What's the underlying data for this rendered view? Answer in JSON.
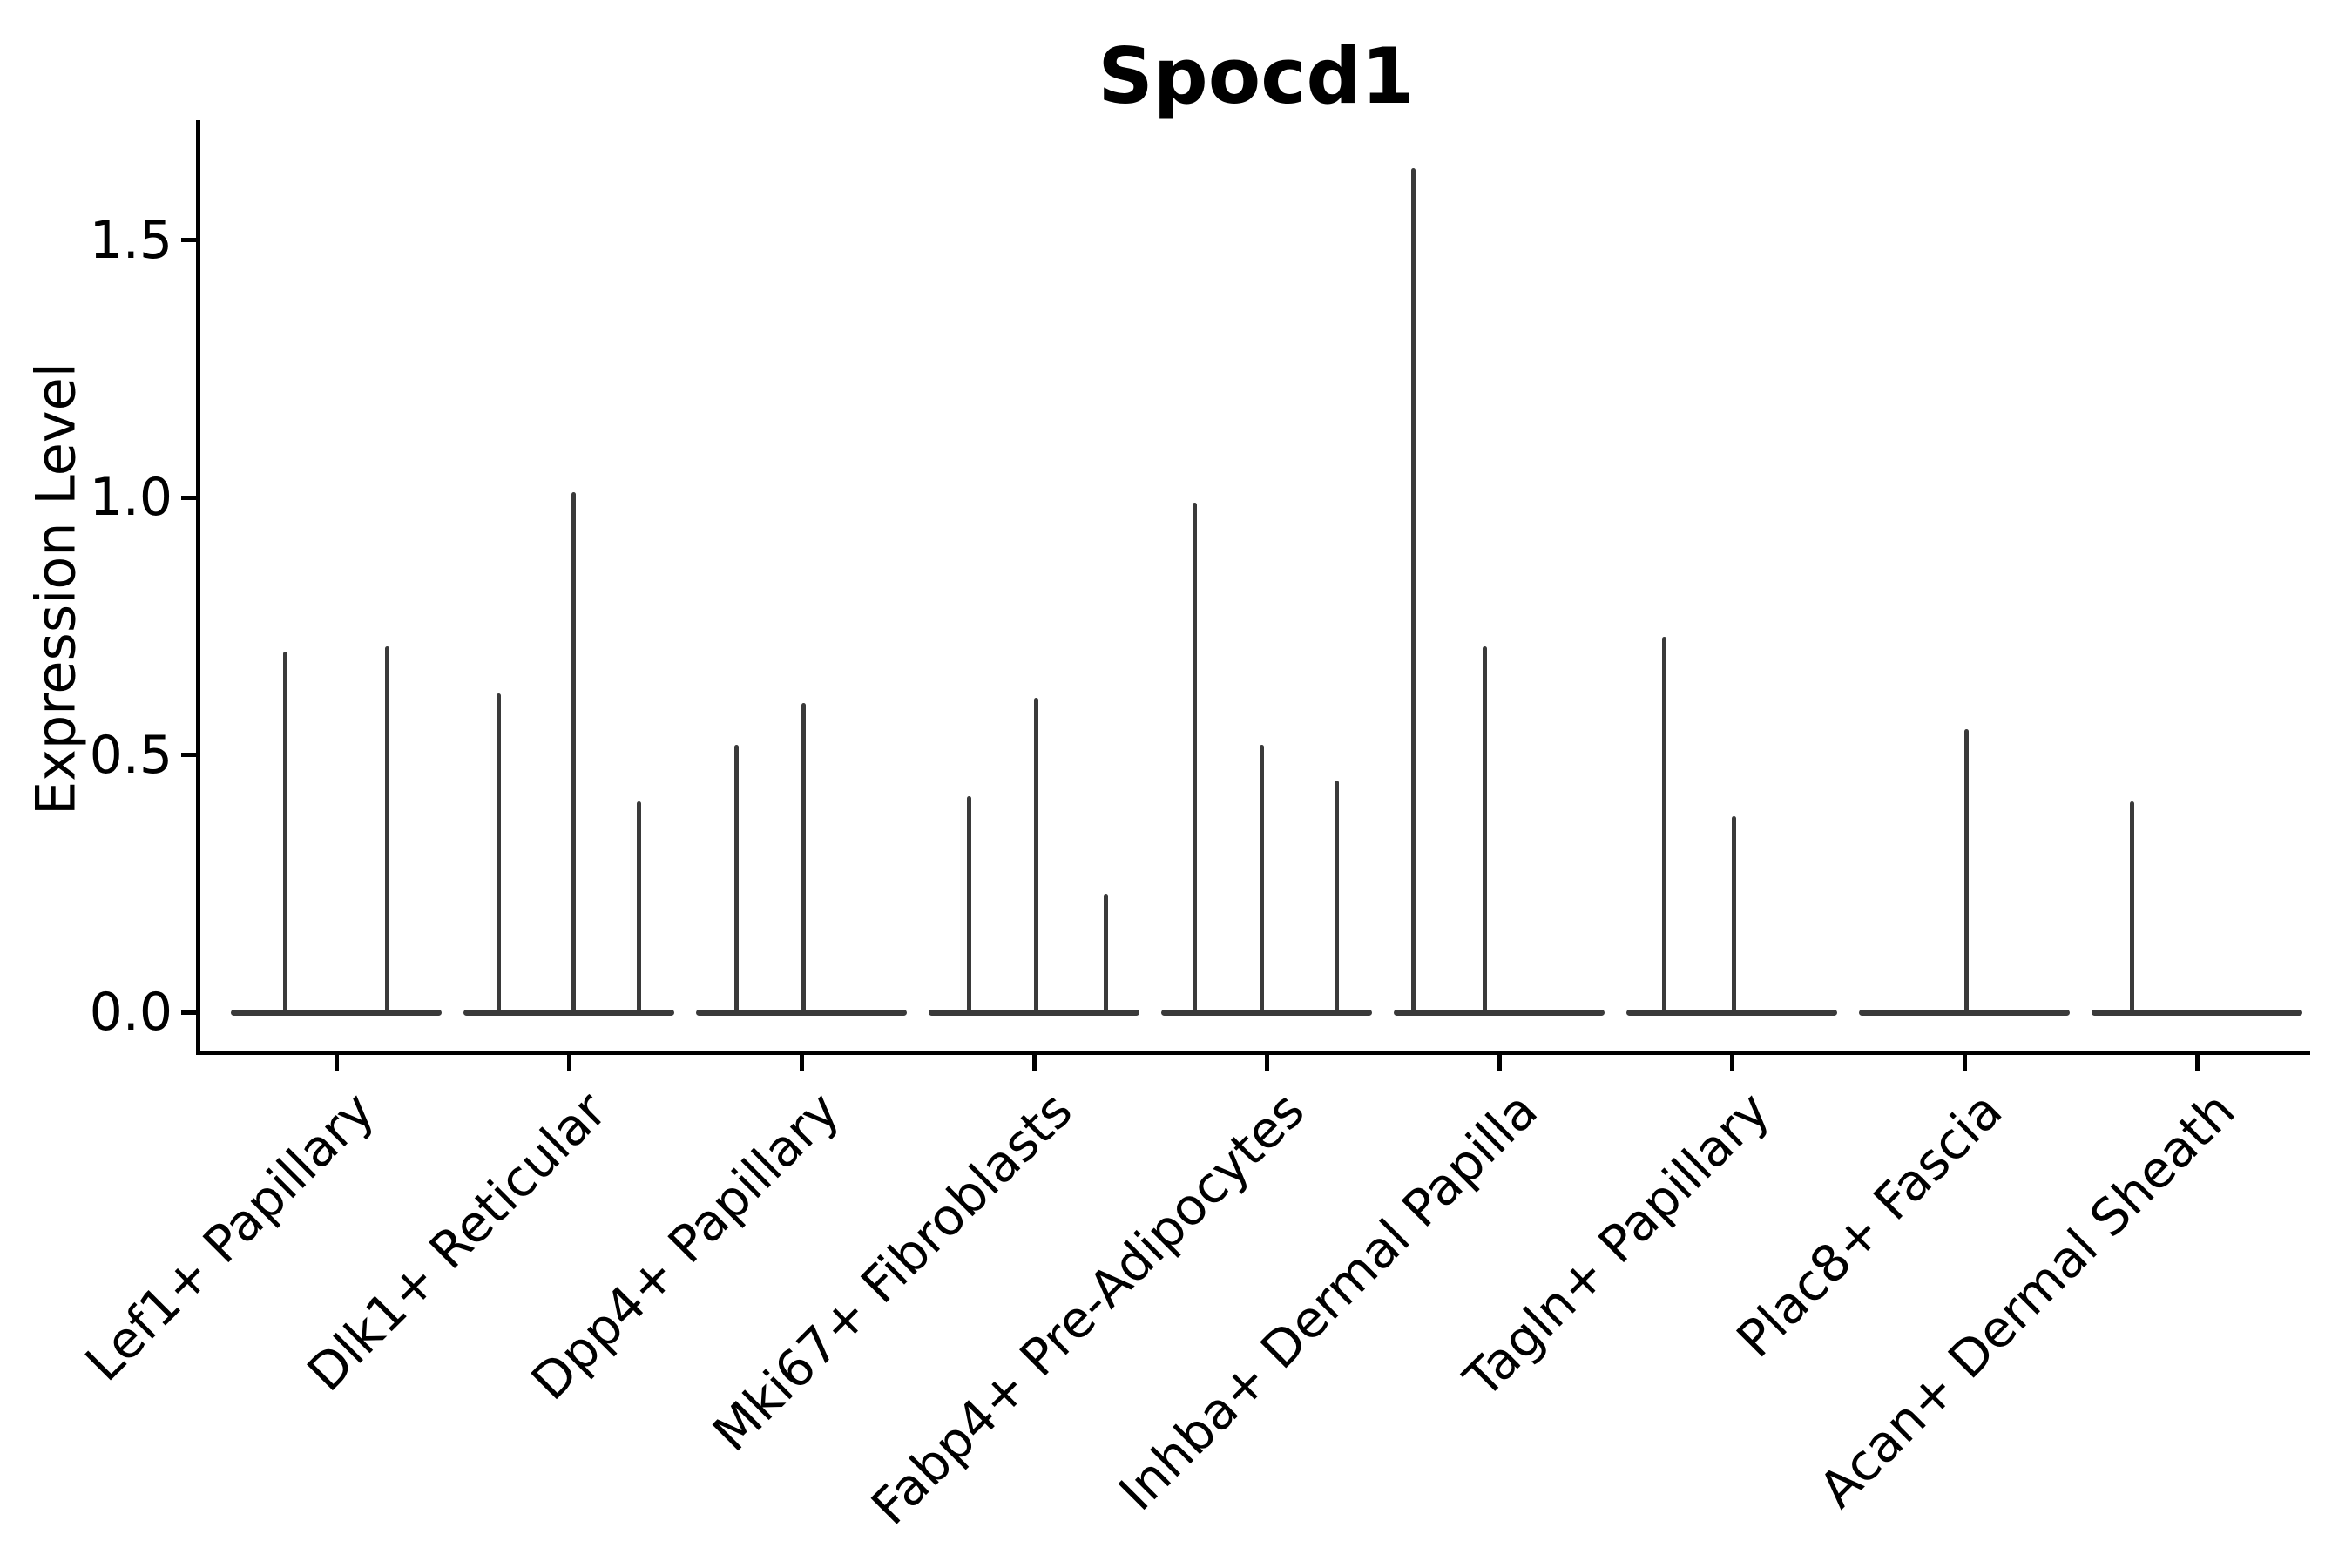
{
  "title": "Spocd1",
  "y_axis": {
    "label": "Expression Level",
    "ticks": [
      "0.0",
      "0.5",
      "1.0",
      "1.5"
    ]
  },
  "x_axis": {
    "categories": [
      "Lef1+ Papillary",
      "Dlk1+ Reticular",
      "Dpp4+ Papillary",
      "Mki67+ Fibroblasts",
      "Fabp4+ Pre-Adipocytes",
      "Inhba+ Dermal Papilla",
      "Tagln+ Papillary",
      "Plac8+ Fascia",
      "Acan+ Dermal Sheath"
    ]
  },
  "colors": {
    "violin": "#3a3a3a",
    "axis": "#000000",
    "text": "#000000",
    "background": "#ffffff"
  },
  "chart_data": {
    "type": "violin",
    "title": "Spocd1",
    "xlabel": "",
    "ylabel": "Expression Level",
    "ylim": [
      0,
      1.73
    ],
    "yticks": [
      0.0,
      0.5,
      1.0,
      1.5
    ],
    "grid": false,
    "legend": null,
    "note": "Collapsed violins: wide flat base at 0 expression with thin density spikes; spike offsets are in category-width units relative to each category center",
    "baseline_halfwidth": 0.45,
    "categories": [
      "Lef1+ Papillary",
      "Dlk1+ Reticular",
      "Dpp4+ Papillary",
      "Mki67+ Fibroblasts",
      "Fabp4+ Pre-Adipocytes",
      "Inhba+ Dermal Papilla",
      "Tagln+ Papillary",
      "Plac8+ Fascia",
      "Acan+ Dermal Sheath"
    ],
    "violins": [
      {
        "category": "Lef1+ Papillary",
        "spikes": [
          {
            "offset": -0.22,
            "max": 0.7
          },
          {
            "offset": 0.22,
            "max": 0.71
          }
        ]
      },
      {
        "category": "Dlk1+ Reticular",
        "spikes": [
          {
            "offset": -0.3,
            "max": 0.62
          },
          {
            "offset": 0.02,
            "max": 1.01
          },
          {
            "offset": 0.3,
            "max": 0.41
          }
        ]
      },
      {
        "category": "Dpp4+ Papillary",
        "spikes": [
          {
            "offset": -0.28,
            "max": 0.52
          },
          {
            "offset": 0.01,
            "max": 0.6
          }
        ]
      },
      {
        "category": "Mki67+ Fibroblasts",
        "spikes": [
          {
            "offset": -0.28,
            "max": 0.42
          },
          {
            "offset": 0.01,
            "max": 0.61
          },
          {
            "offset": 0.31,
            "max": 0.23
          }
        ]
      },
      {
        "category": "Fabp4+ Pre-Adipocytes",
        "spikes": [
          {
            "offset": -0.31,
            "max": 0.99
          },
          {
            "offset": -0.02,
            "max": 0.52
          },
          {
            "offset": 0.3,
            "max": 0.45
          }
        ]
      },
      {
        "category": "Inhba+ Dermal Papilla",
        "spikes": [
          {
            "offset": -0.37,
            "max": 1.64
          },
          {
            "offset": -0.06,
            "max": 0.71
          }
        ]
      },
      {
        "category": "Tagln+ Papillary",
        "spikes": [
          {
            "offset": -0.29,
            "max": 0.73
          },
          {
            "offset": 0.01,
            "max": 0.38
          }
        ]
      },
      {
        "category": "Plac8+ Fascia",
        "spikes": [
          {
            "offset": 0.01,
            "max": 0.55
          }
        ]
      },
      {
        "category": "Acan+ Dermal Sheath",
        "spikes": [
          {
            "offset": -0.28,
            "max": 0.41
          }
        ]
      }
    ]
  }
}
